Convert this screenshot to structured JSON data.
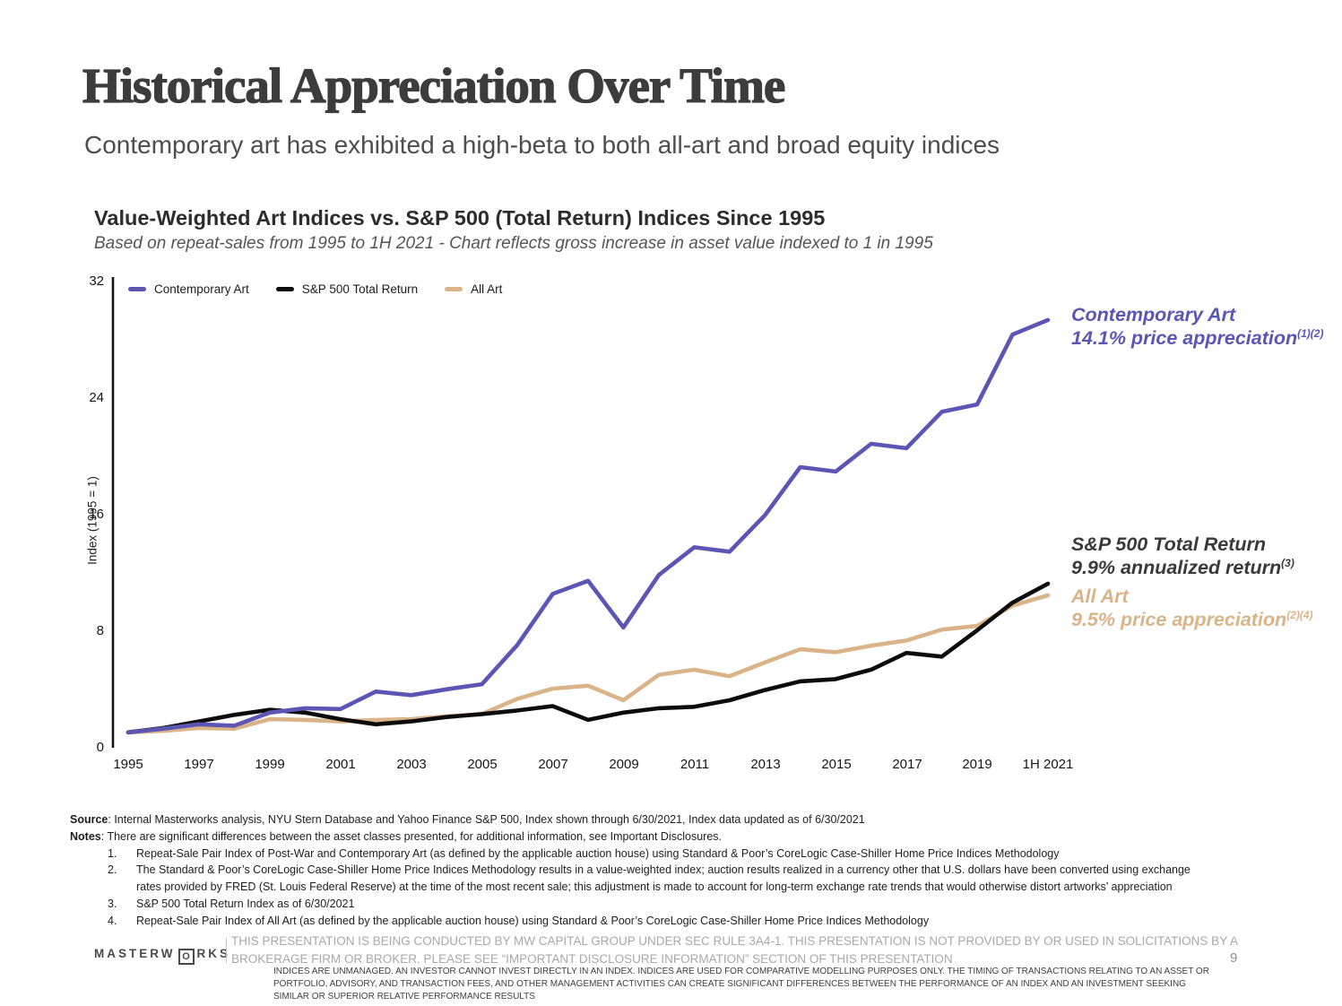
{
  "slide": {
    "title": "Historical Appreciation Over Time",
    "subtitle": "Contemporary art has exhibited a high-beta to both all-art and broad equity indices"
  },
  "chart": {
    "title": "Value-Weighted Art Indices vs. S&P 500 (Total Return) Indices Since 1995",
    "subtitle": "Based on repeat-sales from 1995 to 1H 2021 - Chart reflects gross increase in asset value indexed to 1 in 1995",
    "y_axis_title": "Index (1995 = 1)"
  },
  "chart_data": {
    "type": "line",
    "title": "Value-Weighted Art Indices vs. S&P 500 (Total Return) Indices Since 1995",
    "xlabel": "",
    "ylabel": "Index (1995 = 1)",
    "ylim": [
      0,
      32
    ],
    "yticks": [
      "32",
      "24",
      "16",
      "8",
      "0"
    ],
    "ytick_values": [
      32,
      24,
      16,
      8,
      0
    ],
    "xticks": [
      "1995",
      "1997",
      "1999",
      "2001",
      "2003",
      "2005",
      "2007",
      "2009",
      "2011",
      "2013",
      "2015",
      "2017",
      "2019",
      "1H 2021"
    ],
    "grid": false,
    "legend_position": "top-left",
    "categories": [
      "1995",
      "1996",
      "1997",
      "1998",
      "1999",
      "2000",
      "2001",
      "2002",
      "2003",
      "2004",
      "2005",
      "2006",
      "2007",
      "2008",
      "2009",
      "2010",
      "2011",
      "2012",
      "2013",
      "2014",
      "2015",
      "2016",
      "2017",
      "2018",
      "2019",
      "2020",
      "1H 2021"
    ],
    "series": [
      {
        "name": "All Art",
        "color": "#D9B489",
        "values": [
          1.0,
          1.1,
          1.3,
          1.25,
          1.9,
          1.85,
          1.75,
          1.85,
          1.9,
          2.1,
          2.25,
          3.3,
          4.0,
          4.2,
          3.2,
          4.95,
          5.3,
          4.85,
          5.8,
          6.7,
          6.5,
          6.95,
          7.3,
          8.05,
          8.3,
          9.7,
          10.4
        ]
      },
      {
        "name": "S&P 500 Total Return",
        "color": "#0C0C0C",
        "values": [
          1.0,
          1.3,
          1.75,
          2.2,
          2.55,
          2.35,
          1.9,
          1.55,
          1.75,
          2.05,
          2.25,
          2.5,
          2.8,
          1.85,
          2.35,
          2.65,
          2.75,
          3.2,
          3.9,
          4.5,
          4.65,
          5.3,
          6.45,
          6.2,
          8.0,
          9.9,
          11.2
        ]
      },
      {
        "name": "Contemporary Art",
        "color": "#5C55B4",
        "values": [
          1.0,
          1.25,
          1.55,
          1.45,
          2.35,
          2.65,
          2.6,
          3.8,
          3.55,
          3.95,
          4.3,
          7.0,
          10.5,
          11.4,
          8.2,
          11.8,
          13.7,
          13.4,
          15.9,
          19.2,
          18.9,
          20.8,
          20.5,
          23.0,
          23.5,
          28.3,
          29.3
        ]
      }
    ],
    "legend_order": [
      "Contemporary Art",
      "S&P 500 Total Return",
      "All Art"
    ]
  },
  "annotations": [
    {
      "line1": "Contemporary Art",
      "line2": "14.1% price appreciation",
      "sup": "(1)(2)",
      "color": "#5C55B4"
    },
    {
      "line1": "S&P 500 Total Return",
      "line2": "9.9% annualized return",
      "sup": "(3)",
      "color": "#3a3a3a"
    },
    {
      "line1": "All Art",
      "line2": "9.5% price appreciation",
      "sup": "(2)(4)",
      "color": "#D9B489"
    }
  ],
  "footnotes": {
    "source_label": "Source",
    "source_rest": ": Internal Masterworks analysis, NYU Stern Database and Yahoo Finance S&P 500, Index shown through 6/30/2021, Index data updated as of 6/30/2021",
    "notes_label": "Notes",
    "notes_rest": ": There are significant differences between the asset classes presented, for additional information, see Important Disclosures.",
    "items": [
      {
        "num": "1.",
        "text": "Repeat-Sale Pair Index of Post-War and Contemporary Art (as defined by the applicable auction house) using Standard & Poor’s CoreLogic Case-Shiller Home Price Indices Methodology"
      },
      {
        "num": "2.",
        "text": "The Standard & Poor’s CoreLogic Case-Shiller Home Price Indices Methodology results in a value-weighted index; auction results realized in a currency other that U.S. dollars have been converted using exchange rates provided by FRED (St. Louis Federal Reserve) at the time of the most recent sale; this adjustment is made to account for long-term exchange rate trends that would otherwise distort artworks’ appreciation"
      },
      {
        "num": "3.",
        "text": "S&P 500 Total Return Index as of 6/30/2021"
      },
      {
        "num": "4.",
        "text": "Repeat-Sale Pair Index of All Art (as defined by the applicable auction house) using Standard & Poor’s CoreLogic Case-Shiller Home Price Indices Methodology"
      }
    ]
  },
  "footer": {
    "logo_left": "MASTERW",
    "logo_o": "O",
    "logo_right": "RKS",
    "disclaimer": "THIS PRESENTATION IS BEING CONDUCTED BY MW CAPITAL GROUP UNDER SEC RULE 3A4-1. THIS PRESENTATION IS NOT PROVIDED BY OR USED IN SOLICITATIONS BY A BROKERAGE FIRM OR BROKER. PLEASE SEE “IMPORTANT DISCLOSURE INFORMATION” SECTION OF THIS PRESENTATION",
    "fine_print": "INDICES ARE UNMANAGED. AN INVESTOR CANNOT INVEST DIRECTLY IN AN INDEX. INDICES ARE USED FOR COMPARATIVE MODELLING PURPOSES ONLY. THE TIMING OF TRANSACTIONS RELATING TO AN ASSET OR PORTFOLIO, ADVISORY, AND TRANSACTION FEES, AND OTHER MANAGEMENT ACTIVITIES CAN CREATE SIGNIFICANT DIFFERENCES BETWEEN THE PERFORMANCE OF AN INDEX AND AN INVESTMENT SEEKING SIMILAR OR SUPERIOR RELATIVE PERFORMANCE RESULTS",
    "page_number": "9"
  }
}
